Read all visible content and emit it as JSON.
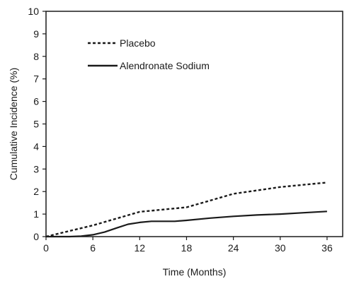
{
  "chart_data": {
    "type": "line",
    "title": "",
    "xlabel": "Time (Months)",
    "ylabel": "Cumulative Incidence (%)",
    "xlim": [
      0,
      38
    ],
    "ylim": [
      0,
      10
    ],
    "x_ticks": [
      0,
      6,
      12,
      18,
      24,
      30,
      36
    ],
    "y_ticks": [
      0,
      1,
      2,
      3,
      4,
      5,
      6,
      7,
      8,
      9,
      10
    ],
    "grid": false,
    "legend_position": "top-left",
    "series": [
      {
        "name": "Placebo",
        "style": "dashed",
        "color": "#1a1a1a",
        "x": [
          0,
          3,
          6,
          9,
          12,
          15,
          18,
          21,
          24,
          27,
          30,
          33,
          36
        ],
        "y": [
          0,
          0.25,
          0.5,
          0.8,
          1.1,
          1.2,
          1.3,
          1.6,
          1.9,
          2.05,
          2.2,
          2.3,
          2.4
        ]
      },
      {
        "name": "Alendronate Sodium",
        "style": "solid",
        "color": "#1a1a1a",
        "x": [
          0,
          3,
          4.5,
          6,
          7.5,
          9,
          10.5,
          12,
          13.5,
          16.5,
          18,
          21,
          24,
          27,
          30,
          33,
          36
        ],
        "y": [
          0,
          0,
          0.02,
          0.08,
          0.2,
          0.38,
          0.55,
          0.63,
          0.68,
          0.68,
          0.72,
          0.82,
          0.9,
          0.96,
          1.0,
          1.06,
          1.12
        ]
      }
    ]
  }
}
